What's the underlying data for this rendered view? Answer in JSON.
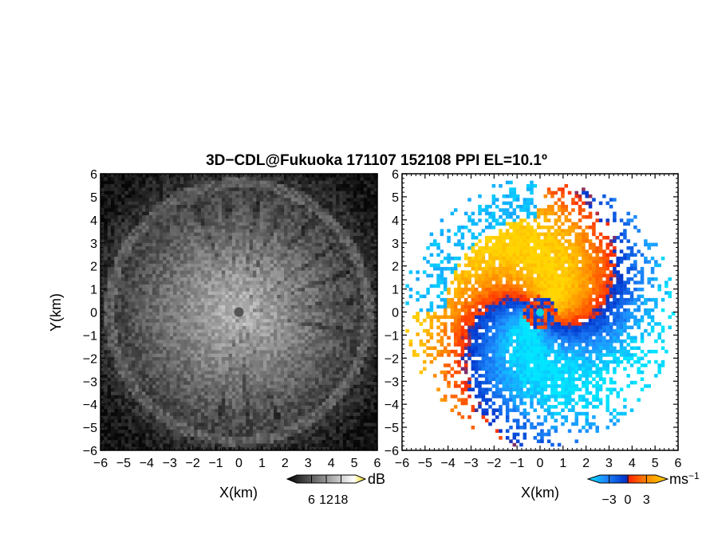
{
  "chart_data": [
    {
      "type": "heatmap",
      "panel": "reflectivity",
      "title": "3D−CDL@Fukuoka 171107 152108 PPI EL=10.1º",
      "xlabel": "X(km)",
      "ylabel": "Y(km)",
      "xlim": [
        -6,
        6
      ],
      "ylim": [
        -6,
        6
      ],
      "xticks": [
        "−6",
        "−5",
        "−4",
        "−3",
        "−2",
        "−1",
        "0",
        "1",
        "2",
        "3",
        "4",
        "5",
        "6"
      ],
      "yticks": [
        "−6",
        "−5",
        "−4",
        "−3",
        "−2",
        "−1",
        "0",
        "1",
        "2",
        "3",
        "4",
        "5",
        "6"
      ],
      "colorbar": {
        "unit": "dB",
        "ticks": [
          "6",
          "12",
          "18"
        ],
        "range": [
          0,
          24
        ],
        "colors": [
          "#000000",
          "#ffffff",
          "#f5d800"
        ]
      }
    },
    {
      "type": "heatmap",
      "panel": "doppler_velocity",
      "xlabel": "X(km)",
      "xlim": [
        -6,
        6
      ],
      "ylim": [
        -6,
        6
      ],
      "xticks": [
        "−6",
        "−5",
        "−4",
        "−3",
        "−2",
        "−1",
        "0",
        "1",
        "2",
        "3",
        "4",
        "5",
        "6"
      ],
      "yticks": [
        "−6",
        "−5",
        "−4",
        "−3",
        "−2",
        "−1",
        "0",
        "1",
        "2",
        "3",
        "4",
        "5",
        "6"
      ],
      "colorbar": {
        "unit": "ms",
        "unit_exponent": "−1",
        "ticks": [
          "−3",
          "0",
          "3"
        ],
        "range": [
          -4.5,
          4.5
        ],
        "colors": [
          "#00e5ff",
          "#1e90ff",
          "#0033cc",
          "#ff2a00",
          "#ff8c00",
          "#ffd500"
        ]
      }
    }
  ]
}
